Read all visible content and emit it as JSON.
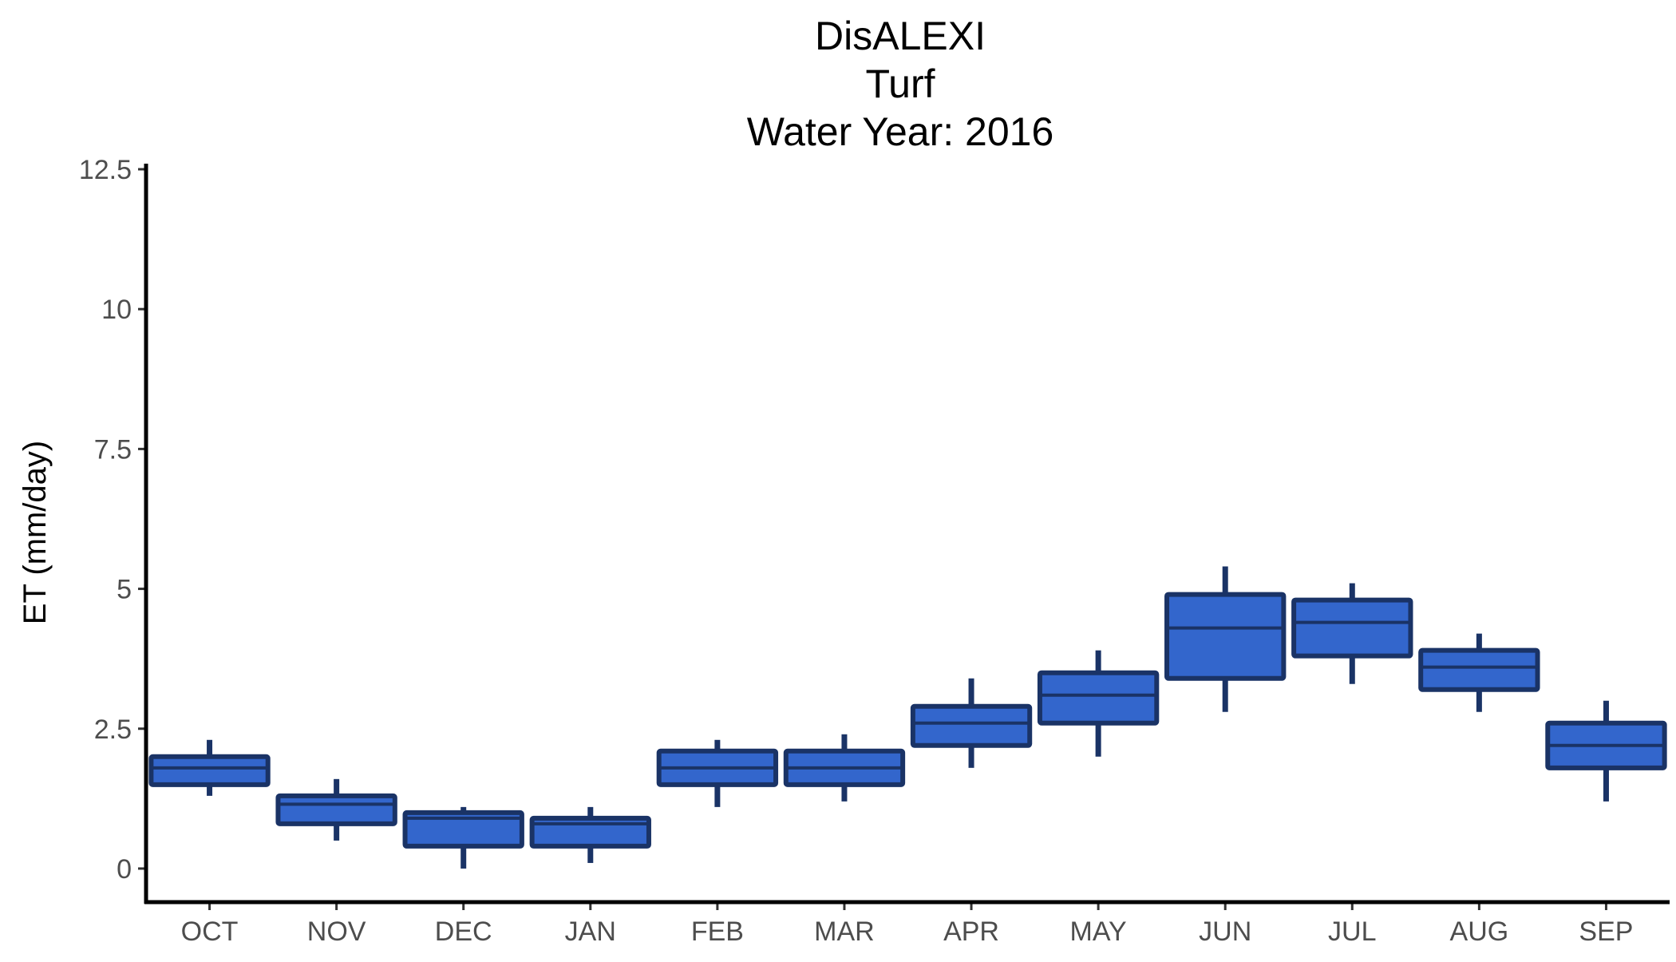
{
  "chart_data": {
    "type": "box",
    "title_lines": [
      "DisALEXI",
      "Turf",
      "Water Year: 2016"
    ],
    "xlabel": "",
    "ylabel": "ET (mm/day)",
    "ylim": [
      -0.6,
      12.6
    ],
    "y_ticks": [
      0,
      2.5,
      5,
      7.5,
      10,
      12.5
    ],
    "y_tick_labels": [
      "0",
      "2.5",
      "5",
      "7.5",
      "10",
      "12.5"
    ],
    "grid": false,
    "legend": "none",
    "colors": {
      "box_fill": "#3366cc",
      "box_border": "#1a3366",
      "axis": "#000000"
    },
    "categories": [
      "OCT",
      "NOV",
      "DEC",
      "JAN",
      "FEB",
      "MAR",
      "APR",
      "MAY",
      "JUN",
      "JUL",
      "AUG",
      "SEP"
    ],
    "boxes": [
      {
        "month": "OCT",
        "min": 1.3,
        "q1": 1.5,
        "median": 1.8,
        "q3": 2.0,
        "max": 2.3
      },
      {
        "month": "NOV",
        "min": 0.5,
        "q1": 0.8,
        "median": 1.15,
        "q3": 1.3,
        "max": 1.6
      },
      {
        "month": "DEC",
        "min": 0.0,
        "q1": 0.4,
        "median": 0.9,
        "q3": 1.0,
        "max": 1.1
      },
      {
        "month": "JAN",
        "min": 0.1,
        "q1": 0.4,
        "median": 0.8,
        "q3": 0.9,
        "max": 1.1
      },
      {
        "month": "FEB",
        "min": 1.1,
        "q1": 1.5,
        "median": 1.8,
        "q3": 2.1,
        "max": 2.3
      },
      {
        "month": "MAR",
        "min": 1.2,
        "q1": 1.5,
        "median": 1.8,
        "q3": 2.1,
        "max": 2.4
      },
      {
        "month": "APR",
        "min": 1.8,
        "q1": 2.2,
        "median": 2.6,
        "q3": 2.9,
        "max": 3.4
      },
      {
        "month": "MAY",
        "min": 2.0,
        "q1": 2.6,
        "median": 3.1,
        "q3": 3.5,
        "max": 3.9
      },
      {
        "month": "JUN",
        "min": 2.8,
        "q1": 3.4,
        "median": 4.3,
        "q3": 4.9,
        "max": 5.4
      },
      {
        "month": "JUL",
        "min": 3.3,
        "q1": 3.8,
        "median": 4.4,
        "q3": 4.8,
        "max": 5.1
      },
      {
        "month": "AUG",
        "min": 2.8,
        "q1": 3.2,
        "median": 3.6,
        "q3": 3.9,
        "max": 4.2
      },
      {
        "month": "SEP",
        "min": 1.2,
        "q1": 1.8,
        "median": 2.2,
        "q3": 2.6,
        "max": 3.0
      }
    ]
  }
}
